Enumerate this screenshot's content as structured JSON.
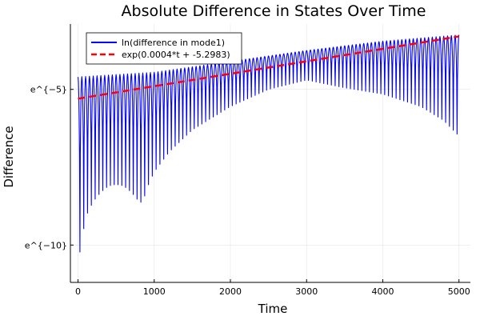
{
  "chart_data": {
    "type": "line",
    "title": "Absolute Difference in States Over Time",
    "xlabel": "Time",
    "ylabel": "Difference",
    "xlim": [
      -100,
      5150
    ],
    "ylim_ln": [
      -11.2,
      -2.9
    ],
    "y_scale": "log-e",
    "x_ticks": [
      {
        "value": 0,
        "label": "0"
      },
      {
        "value": 1000,
        "label": "1000"
      },
      {
        "value": 2000,
        "label": "2000"
      },
      {
        "value": 3000,
        "label": "3000"
      },
      {
        "value": 4000,
        "label": "4000"
      },
      {
        "value": 5000,
        "label": "5000"
      }
    ],
    "y_ticks": [
      {
        "ln_value": -5,
        "label": "e^{−5}"
      },
      {
        "ln_value": -10,
        "label": "e^{−10}"
      }
    ],
    "grid": true,
    "legend_position": "top-left",
    "series": [
      {
        "name": "ln(difference in mode1)",
        "color": "#0000ff",
        "style": "solid",
        "kind": "oscillating",
        "period": 50,
        "t_start": 0,
        "t_end": 5000,
        "upper_envelope": {
          "t": [
            0,
            1000,
            2000,
            3000,
            4000,
            5000
          ],
          "ln": [
            -4.6,
            -4.45,
            -4.1,
            -3.75,
            -3.45,
            -3.25
          ]
        },
        "lower_envelope": {
          "t": [
            0,
            100,
            200,
            300,
            400,
            500,
            600,
            700,
            800,
            850,
            900,
            1000,
            1200,
            1500,
            2000,
            2500,
            3000,
            3500,
            4000,
            4500,
            4800,
            5000
          ],
          "ln": [
            -10.6,
            -9.1,
            -8.6,
            -8.3,
            -8.1,
            -8.05,
            -8.1,
            -8.3,
            -8.6,
            -8.65,
            -8.2,
            -7.65,
            -7.0,
            -6.3,
            -5.55,
            -5.0,
            -4.7,
            -4.95,
            -5.15,
            -5.55,
            -6.0,
            -6.5
          ]
        }
      },
      {
        "name": "exp(0.0004*t + -5.2983)",
        "color": "#ff0000",
        "style": "dashed",
        "slope": 0.0004,
        "intercept": -5.2983,
        "t_start": 0,
        "t_end": 5000
      }
    ]
  }
}
